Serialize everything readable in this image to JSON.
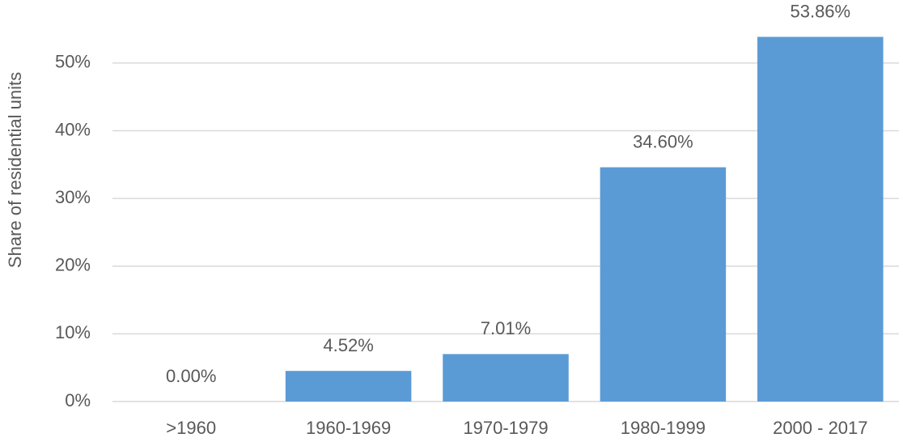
{
  "chart_data": {
    "type": "bar",
    "y_label": "Share of residential units",
    "categories": [
      ">1960",
      "1960-1969",
      "1970-1979",
      "1980-1999",
      "2000 - 2017"
    ],
    "values": [
      0.0,
      4.52,
      7.01,
      34.6,
      53.86
    ],
    "value_labels": [
      "0.00%",
      "4.52%",
      "7.01%",
      "34.60%",
      "53.86%"
    ],
    "color": "#5b9bd5",
    "ylim": [
      0,
      55
    ],
    "yticks": [
      {
        "value": 0,
        "label": "0%"
      },
      {
        "value": 10,
        "label": "10%"
      },
      {
        "value": 20,
        "label": "20%"
      },
      {
        "value": 30,
        "label": "30%"
      },
      {
        "value": 40,
        "label": "40%"
      },
      {
        "value": 50,
        "label": "50%"
      }
    ],
    "grid": true
  }
}
